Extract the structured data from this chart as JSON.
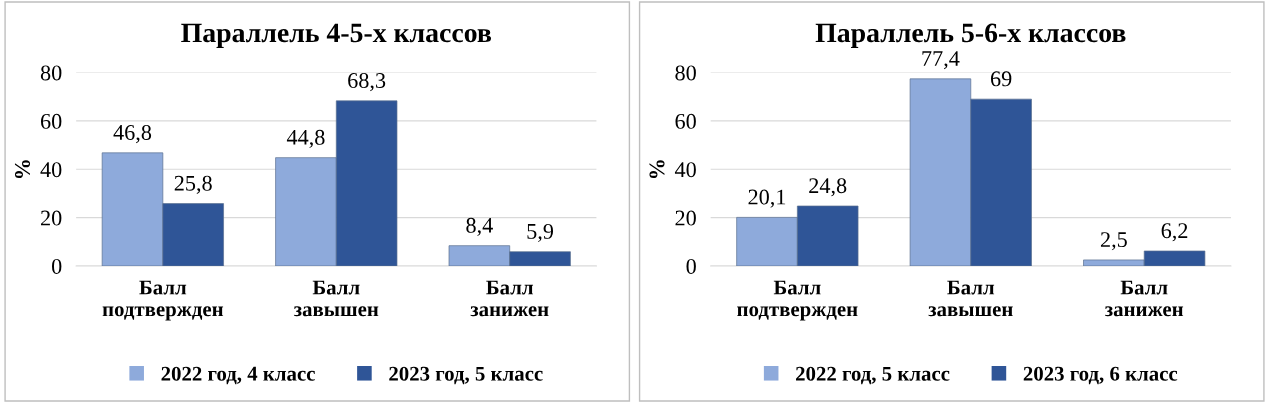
{
  "chart_data": [
    {
      "type": "bar",
      "title": "Параллель 4-5-х классов",
      "ylabel": "%",
      "categories": [
        "Балл\nподтвержден",
        "Балл\nзавышен",
        "Балл\nзанижен"
      ],
      "series": [
        {
          "name": "2022 год, 4 класс",
          "color": "#8eaadb",
          "values": [
            46.8,
            44.8,
            8.4
          ],
          "value_labels": [
            "46,8",
            "44,8",
            "8,4"
          ]
        },
        {
          "name": "2023 год, 5 класс",
          "color": "#2f5597",
          "values": [
            25.8,
            68.3,
            5.9
          ],
          "value_labels": [
            "25,8",
            "68,3",
            "5,9"
          ]
        }
      ],
      "ylim": [
        0,
        80
      ],
      "yticks": [
        0,
        20,
        40,
        60,
        80
      ],
      "grid": "y",
      "legend": "bottom"
    },
    {
      "type": "bar",
      "title": "Параллель 5-6-х классов",
      "ylabel": "%",
      "categories": [
        "Балл\nподтвержден",
        "Балл\nзавышен",
        "Балл\nзанижен"
      ],
      "series": [
        {
          "name": "2022 год, 5 класс",
          "color": "#8eaadb",
          "values": [
            20.1,
            77.4,
            2.5
          ],
          "value_labels": [
            "20,1",
            "77,4",
            "2,5"
          ]
        },
        {
          "name": "2023 год, 6 класс",
          "color": "#2f5597",
          "values": [
            24.8,
            69,
            6.2
          ],
          "value_labels": [
            "24,8",
            "69",
            "6,2"
          ]
        }
      ],
      "ylim": [
        0,
        80
      ],
      "yticks": [
        0,
        20,
        40,
        60,
        80
      ],
      "grid": "y",
      "legend": "bottom"
    }
  ]
}
